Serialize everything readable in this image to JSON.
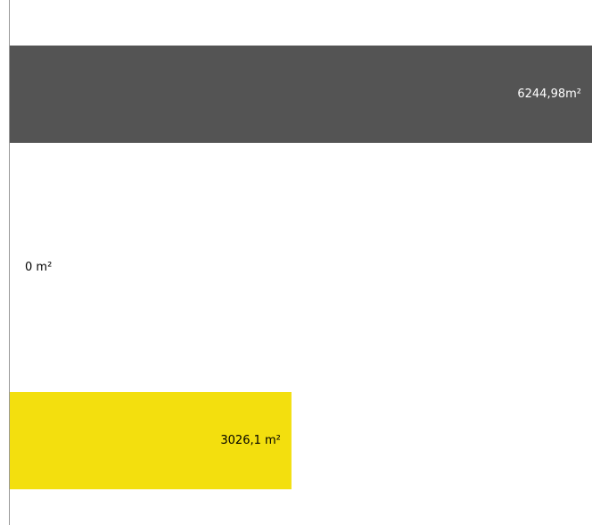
{
  "chart_data": {
    "type": "hbar",
    "values": [
      6244.98,
      0,
      3026.1
    ],
    "value_labels": [
      "6244,98m²",
      "0 m²",
      "3026,1 m²"
    ],
    "colors": [
      "#545454",
      "#545454",
      "#f3df0e"
    ],
    "xlim": [
      0,
      6244.98
    ]
  }
}
